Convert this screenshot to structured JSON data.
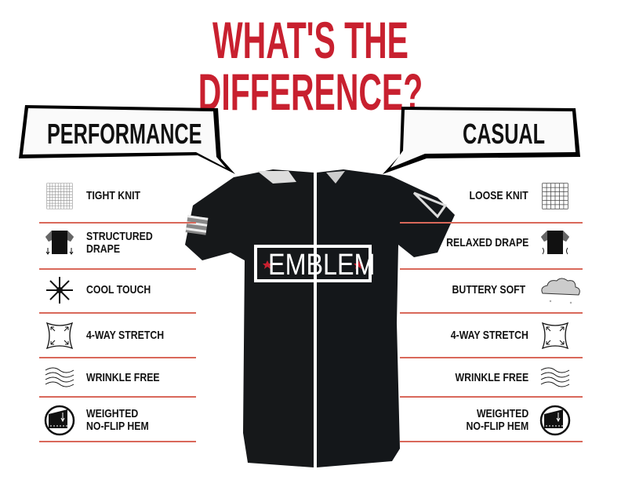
{
  "title": "WHAT'S THE DIFFERENCE?",
  "colors": {
    "title": "#c8202f",
    "separator": "#d9685a",
    "shirt": "#151719"
  },
  "performance": {
    "label": "PERFORMANCE",
    "features": [
      {
        "icon": "tight-knit-grid-icon",
        "lines": [
          "TIGHT KNIT"
        ]
      },
      {
        "icon": "structured-drape-shirt-icon",
        "lines": [
          "STRUCTURED",
          "DRAPE"
        ]
      },
      {
        "icon": "snowflake-icon",
        "lines": [
          "COOL TOUCH"
        ]
      },
      {
        "icon": "four-way-stretch-icon",
        "lines": [
          "4-WAY STRETCH"
        ]
      },
      {
        "icon": "wrinkle-free-waves-icon",
        "lines": [
          "WRINKLE FREE"
        ]
      },
      {
        "icon": "weighted-hem-icon",
        "lines": [
          "WEIGHTED",
          "NO-FLIP HEM"
        ]
      }
    ]
  },
  "casual": {
    "label": "CASUAL",
    "features": [
      {
        "icon": "loose-knit-grid-icon",
        "lines": [
          "LOOSE KNIT"
        ]
      },
      {
        "icon": "relaxed-drape-shirt-icon",
        "lines": [
          "RELAXED DRAPE"
        ]
      },
      {
        "icon": "cloud-icon",
        "lines": [
          "BUTTERY SOFT"
        ]
      },
      {
        "icon": "four-way-stretch-icon",
        "lines": [
          "4-WAY STRETCH"
        ]
      },
      {
        "icon": "wrinkle-free-waves-icon",
        "lines": [
          "WRINKLE FREE"
        ]
      },
      {
        "icon": "weighted-hem-icon",
        "lines": [
          "WEIGHTED",
          "NO-FLIP HEM"
        ]
      }
    ]
  },
  "shirt": {
    "logo": "EMBLEM"
  }
}
